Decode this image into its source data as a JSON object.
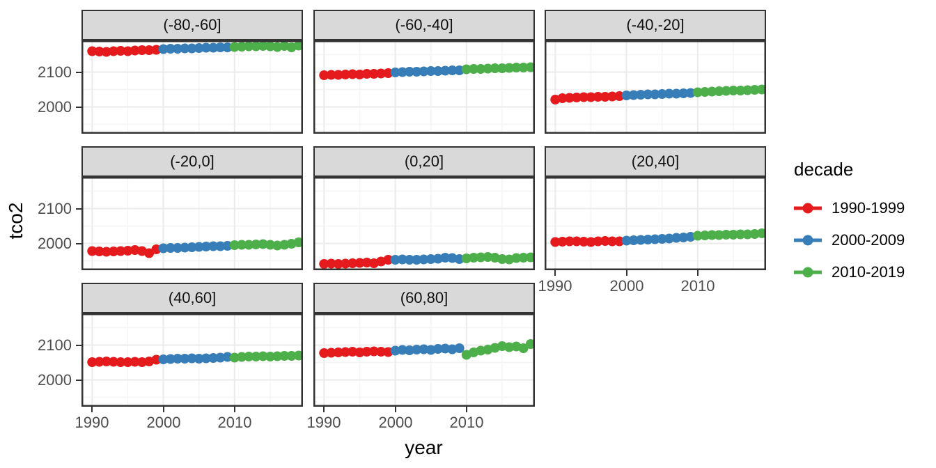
{
  "figure": {
    "x_axis_title": "year",
    "y_axis_title": "tco2",
    "x_tick_labels": [
      "1990",
      "2000",
      "2010"
    ],
    "y_tick_labels": [
      "2100",
      "2000"
    ]
  },
  "legend": {
    "title": "decade",
    "entries": [
      {
        "label": "1990-1999",
        "color": "#E41A1C"
      },
      {
        "label": "2000-2009",
        "color": "#377EB8"
      },
      {
        "label": "2010-2019",
        "color": "#4DAF4A"
      }
    ]
  },
  "colors": {
    "strip_background": "#D9D9D9",
    "panel_border": "#333333",
    "grid_major": "#EBEBEB",
    "grid_minor": "#F4F4F4",
    "tick_label": "#4D4D4D",
    "axis_title": "#000000"
  },
  "chart_data": {
    "type": "scatter",
    "title": "",
    "xlabel": "year",
    "ylabel": "tco2",
    "grid": true,
    "legend_position": "right",
    "legend_title": "decade",
    "point_radius": 7,
    "x_ticks": [
      1990,
      2000,
      2010
    ],
    "x_minor_ticks": [
      1995,
      2005,
      2015
    ],
    "y_ticks": [
      2100,
      2000
    ],
    "y_minor_ticks": [
      1950,
      2050,
      2150
    ],
    "xlim": [
      1988.5,
      2019.6
    ],
    "ylim": [
      1923,
      2191
    ],
    "facet_labels": [
      "(-80,-60]",
      "(-60,-40]",
      "(-40,-20]",
      "(-20,0]",
      "(0,20]",
      "(20,40]",
      "(40,60]",
      "(60,80]"
    ],
    "facets": [
      {
        "label": "(-80,-60]",
        "series": [
          {
            "name": "1990-1999",
            "x_start": 1990,
            "values": [
              2160,
              2159,
              2158,
              2160,
              2161,
              2160,
              2162,
              2163,
              2163,
              2164
            ]
          },
          {
            "name": "2000-2009",
            "x_start": 2000,
            "values": [
              2166,
              2167,
              2167,
              2168,
              2168,
              2169,
              2170,
              2170,
              2171,
              2171
            ]
          },
          {
            "name": "2010-2019",
            "x_start": 2010,
            "values": [
              2172,
              2173,
              2174,
              2174,
              2175,
              2174,
              2172,
              2175,
              2171,
              2176
            ]
          }
        ]
      },
      {
        "label": "(-60,-40]",
        "series": [
          {
            "name": "1990-1999",
            "x_start": 1990,
            "values": [
              2091,
              2092,
              2092,
              2093,
              2094,
              2093,
              2095,
              2095,
              2096,
              2097
            ]
          },
          {
            "name": "2000-2009",
            "x_start": 2000,
            "values": [
              2099,
              2100,
              2101,
              2101,
              2102,
              2103,
              2103,
              2104,
              2105,
              2105
            ]
          },
          {
            "name": "2010-2019",
            "x_start": 2010,
            "values": [
              2108,
              2109,
              2109,
              2110,
              2111,
              2111,
              2112,
              2113,
              2113,
              2114
            ]
          }
        ]
      },
      {
        "label": "(-40,-20]",
        "series": [
          {
            "name": "1990-1999",
            "x_start": 1990,
            "values": [
              2021,
              2025,
              2026,
              2027,
              2028,
              2028,
              2029,
              2029,
              2030,
              2031
            ]
          },
          {
            "name": "2000-2009",
            "x_start": 2000,
            "values": [
              2033,
              2034,
              2035,
              2036,
              2036,
              2037,
              2038,
              2038,
              2039,
              2040
            ]
          },
          {
            "name": "2010-2019",
            "x_start": 2010,
            "values": [
              2042,
              2043,
              2044,
              2045,
              2046,
              2047,
              2047,
              2048,
              2049,
              2050
            ]
          }
        ]
      },
      {
        "label": "(-20,0]",
        "series": [
          {
            "name": "1990-1999",
            "x_start": 1990,
            "values": [
              1978,
              1977,
              1976,
              1977,
              1978,
              1979,
              1981,
              1978,
              1972,
              1983
            ]
          },
          {
            "name": "2000-2009",
            "x_start": 2000,
            "values": [
              1986,
              1987,
              1987,
              1988,
              1989,
              1990,
              1991,
              1992,
              1992,
              1993
            ]
          },
          {
            "name": "2010-2019",
            "x_start": 2010,
            "values": [
              1995,
              1996,
              1996,
              1997,
              1998,
              1996,
              1994,
              1996,
              1999,
              2003
            ]
          }
        ]
      },
      {
        "label": "(0,20]",
        "series": [
          {
            "name": "1990-1999",
            "x_start": 1990,
            "values": [
              1941,
              1942,
              1941,
              1942,
              1943,
              1944,
              1945,
              1943,
              1948,
              1953
            ]
          },
          {
            "name": "2000-2009",
            "x_start": 2000,
            "values": [
              1953,
              1954,
              1953,
              1953,
              1954,
              1955,
              1956,
              1959,
              1958,
              1955
            ]
          },
          {
            "name": "2010-2019",
            "x_start": 2010,
            "values": [
              1957,
              1959,
              1960,
              1961,
              1959,
              1955,
              1954,
              1958,
              1959,
              1960
            ]
          }
        ]
      },
      {
        "label": "(20,40]",
        "series": [
          {
            "name": "1990-1999",
            "x_start": 1990,
            "values": [
              2004,
              2005,
              2006,
              2006,
              2005,
              2004,
              2006,
              2007,
              2006,
              2006
            ]
          },
          {
            "name": "2000-2009",
            "x_start": 2000,
            "values": [
              2008,
              2009,
              2010,
              2011,
              2012,
              2013,
              2014,
              2016,
              2017,
              2019
            ]
          },
          {
            "name": "2010-2019",
            "x_start": 2010,
            "values": [
              2022,
              2023,
              2024,
              2024,
              2025,
              2025,
              2026,
              2026,
              2027,
              2029
            ]
          }
        ]
      },
      {
        "label": "(40,60]",
        "series": [
          {
            "name": "1990-1999",
            "x_start": 1990,
            "values": [
              2051,
              2052,
              2053,
              2052,
              2051,
              2051,
              2052,
              2051,
              2053,
              2058
            ]
          },
          {
            "name": "2000-2009",
            "x_start": 2000,
            "values": [
              2059,
              2060,
              2061,
              2061,
              2062,
              2061,
              2062,
              2063,
              2064,
              2066
            ]
          },
          {
            "name": "2010-2019",
            "x_start": 2010,
            "values": [
              2064,
              2066,
              2067,
              2067,
              2068,
              2067,
              2068,
              2069,
              2069,
              2070
            ]
          }
        ]
      },
      {
        "label": "(60,80]",
        "series": [
          {
            "name": "1990-1999",
            "x_start": 1990,
            "values": [
              2077,
              2078,
              2079,
              2080,
              2081,
              2079,
              2081,
              2082,
              2081,
              2080
            ]
          },
          {
            "name": "2000-2009",
            "x_start": 2000,
            "values": [
              2084,
              2086,
              2085,
              2087,
              2088,
              2086,
              2089,
              2090,
              2088,
              2091
            ]
          },
          {
            "name": "2010-2019",
            "x_start": 2010,
            "values": [
              2072,
              2079,
              2084,
              2087,
              2092,
              2097,
              2094,
              2096,
              2091,
              2103
            ]
          }
        ]
      }
    ]
  }
}
